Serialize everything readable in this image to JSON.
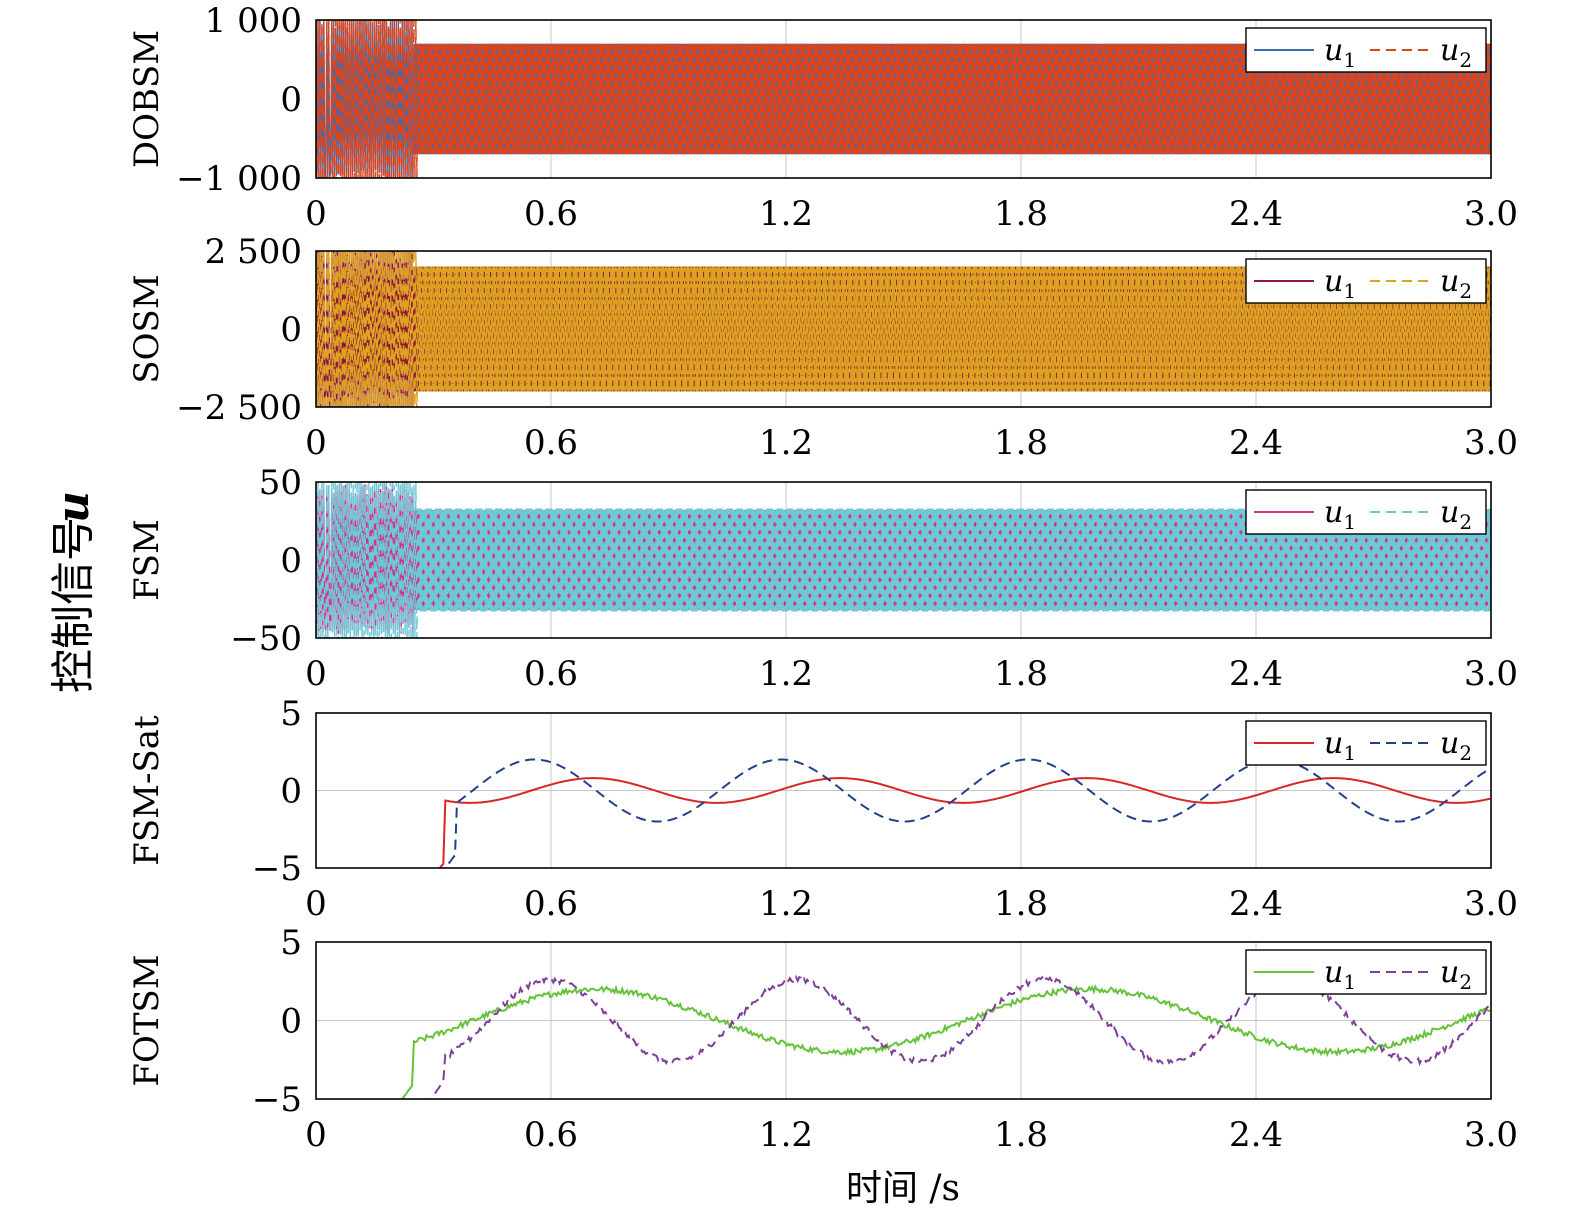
{
  "figure": {
    "y_axis_label": "控制信号",
    "y_axis_symbol": "u",
    "x_axis_label": "时间 /s"
  },
  "chart_data": [
    {
      "type": "line",
      "ylabel": "DOBSM",
      "xlim": [
        0,
        3.0
      ],
      "ylim": [
        -1000,
        1000
      ],
      "x_ticks": [
        "0",
        "0.6",
        "1.2",
        "1.8",
        "2.4",
        "3.0"
      ],
      "y_ticks": [
        "−1 000",
        "0",
        "1 000"
      ],
      "y_tick_values": [
        -1000,
        0,
        1000
      ],
      "grid": true,
      "legend_position": "top-right",
      "series": [
        {
          "name": "u",
          "subscript": "1",
          "color": "#3b6db5",
          "style": "solid",
          "kind": "chatter",
          "amplitude": 700
        },
        {
          "name": "u",
          "subscript": "2",
          "color": "#d9451f",
          "style": "dashed",
          "kind": "chatter",
          "amplitude": 700
        }
      ]
    },
    {
      "type": "line",
      "ylabel": "SOSM",
      "xlim": [
        0,
        3.0
      ],
      "ylim": [
        -2500,
        2500
      ],
      "x_ticks": [
        "0",
        "0.6",
        "1.2",
        "1.8",
        "2.4",
        "3.0"
      ],
      "y_ticks": [
        "−2 500",
        "0",
        "2 500"
      ],
      "y_tick_values": [
        -2500,
        0,
        2500
      ],
      "grid": true,
      "legend_position": "top-right",
      "series": [
        {
          "name": "u",
          "subscript": "1",
          "color": "#8e1a3c",
          "style": "solid",
          "kind": "chatter",
          "amplitude": 2000
        },
        {
          "name": "u",
          "subscript": "2",
          "color": "#dda222",
          "style": "dashed",
          "kind": "chatter",
          "amplitude": 2000
        }
      ]
    },
    {
      "type": "line",
      "ylabel": "FSM",
      "xlim": [
        0,
        3.0
      ],
      "ylim": [
        -50,
        50
      ],
      "x_ticks": [
        "0",
        "0.6",
        "1.2",
        "1.8",
        "2.4",
        "3.0"
      ],
      "y_ticks": [
        "−50",
        "0",
        "50"
      ],
      "y_tick_values": [
        -50,
        0,
        50
      ],
      "grid": true,
      "legend_position": "top-right",
      "series": [
        {
          "name": "u",
          "subscript": "1",
          "color": "#d6308e",
          "style": "solid",
          "kind": "chatter",
          "amplitude": 32
        },
        {
          "name": "u",
          "subscript": "2",
          "color": "#6ec9d6",
          "style": "dashed",
          "kind": "chatter",
          "amplitude": 33
        }
      ]
    },
    {
      "type": "line",
      "ylabel": "FSM-Sat",
      "xlim": [
        0,
        3.0
      ],
      "ylim": [
        -5,
        5
      ],
      "x_ticks": [
        "0",
        "0.6",
        "1.2",
        "1.8",
        "2.4",
        "3.0"
      ],
      "y_ticks": [
        "−5",
        "0",
        "5"
      ],
      "y_tick_values": [
        -5,
        0,
        5
      ],
      "grid": true,
      "legend_position": "top-right",
      "series": [
        {
          "name": "u",
          "subscript": "1",
          "color": "#d62728",
          "style": "solid",
          "kind": "sine",
          "amplitude": 0.8,
          "period": 0.63,
          "phase": 0.55,
          "start": 0.33
        },
        {
          "name": "u",
          "subscript": "2",
          "color": "#243f8c",
          "style": "dashed",
          "kind": "sine",
          "amplitude": 2.0,
          "period": 0.63,
          "phase": 0.4,
          "start": 0.36
        }
      ]
    },
    {
      "type": "line",
      "ylabel": "FOTSM",
      "xlim": [
        0,
        3.0
      ],
      "ylim": [
        -5,
        5
      ],
      "x_ticks": [
        "0",
        "0.6",
        "1.2",
        "1.8",
        "2.4",
        "3.0"
      ],
      "y_ticks": [
        "−5",
        "0",
        "5"
      ],
      "y_tick_values": [
        -5,
        0,
        5
      ],
      "grid": true,
      "legend_position": "top-right",
      "series": [
        {
          "name": "u",
          "subscript": "1",
          "color": "#66c23a",
          "style": "solid",
          "kind": "sine",
          "amplitude": 2.0,
          "period": 1.26,
          "phase": 0.4,
          "start": 0.25
        },
        {
          "name": "u",
          "subscript": "2",
          "color": "#7e3f98",
          "style": "dashed",
          "kind": "sine",
          "amplitude": 2.6,
          "period": 0.63,
          "phase": 0.44,
          "start": 0.33
        }
      ]
    }
  ]
}
